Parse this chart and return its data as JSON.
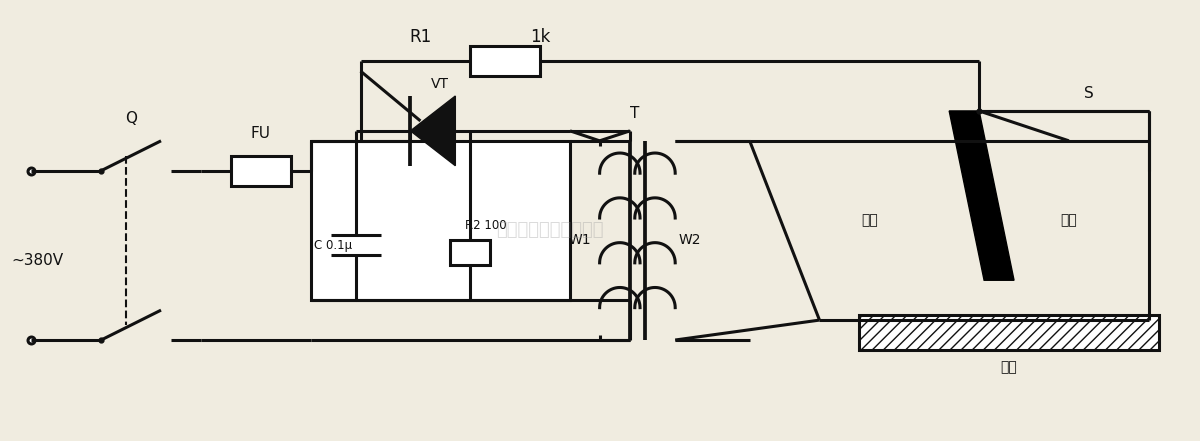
{
  "bg_color": "#f0ece0",
  "line_color": "#111111",
  "lw": 2.2,
  "fig_w": 12.0,
  "fig_h": 4.41,
  "labels": {
    "voltage": "~380V",
    "Q": "Q",
    "FU": "FU",
    "VT": "VT",
    "R1": "R1",
    "R1_val": "1k",
    "C": "C 0.1μ",
    "R2": "R2 100",
    "T": "T",
    "W1": "W1",
    "W2": "W2",
    "S": "S",
    "welding_gun": "焊枪",
    "welding_rod": "焊条",
    "workpiece": "焊件"
  },
  "watermark": "杭州隆睿科技有限公司"
}
